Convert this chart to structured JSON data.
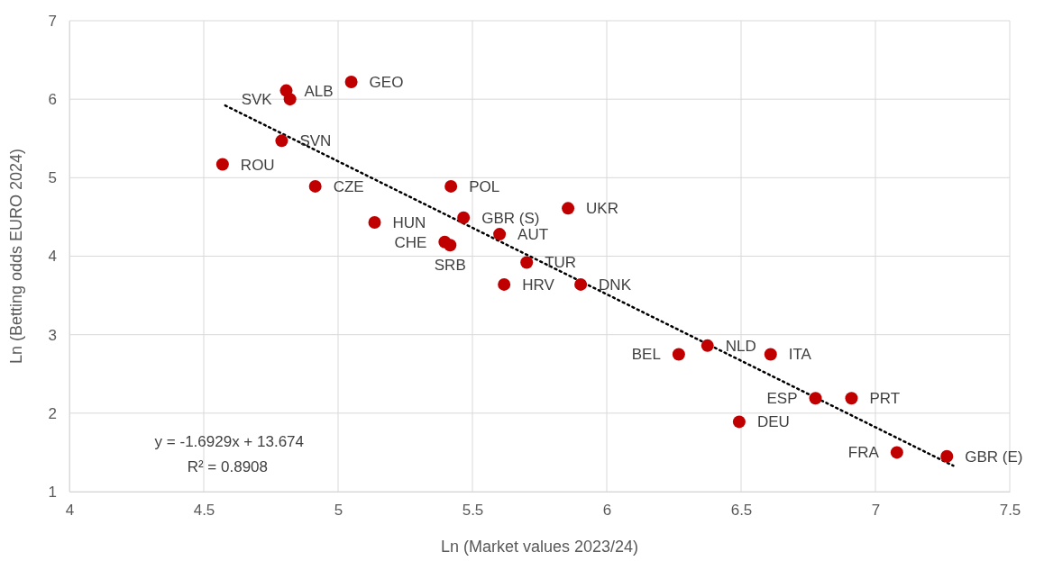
{
  "chart_data": {
    "type": "scatter",
    "xlabel": "Ln (Market values 2023/24)",
    "ylabel": "Ln (Betting odds EURO 2024)",
    "xlim": [
      4,
      7.5
    ],
    "xticks": [
      4,
      4.5,
      5,
      5.5,
      6,
      6.5,
      7,
      7.5
    ],
    "ylim": [
      1,
      7
    ],
    "yticks": [
      1,
      2,
      3,
      4,
      5,
      6,
      7
    ],
    "grid": true,
    "series": [
      {
        "color": "#c00000",
        "marker": "circle",
        "x": [
          4.807,
          5.049,
          4.821,
          4.79,
          4.57,
          4.915,
          5.42,
          5.856,
          5.467,
          5.136,
          5.601,
          5.397,
          5.417,
          5.702,
          5.618,
          5.903,
          6.375,
          6.268,
          6.61,
          6.777,
          6.911,
          6.493,
          7.08,
          7.266
        ],
        "values": [
          6.11,
          6.22,
          6.0,
          5.47,
          5.17,
          4.89,
          4.89,
          4.61,
          4.49,
          4.43,
          4.28,
          4.18,
          4.14,
          3.92,
          3.64,
          3.64,
          2.86,
          2.75,
          2.75,
          2.19,
          2.19,
          1.89,
          1.5,
          1.45
        ]
      },
      {
        "type": "line",
        "color": "#000000",
        "line_style": "dotted",
        "marker": "none",
        "x": [
          4.58,
          7.29
        ],
        "values": [
          5.92,
          1.33
        ]
      }
    ],
    "annotations": [
      {
        "text": "ALB",
        "x": 4.807,
        "y": 6.11
      },
      {
        "text": "GEO",
        "x": 5.049,
        "y": 6.22
      },
      {
        "text": "SVK",
        "x": 4.821,
        "y": 6.0
      },
      {
        "text": "SVN",
        "x": 4.79,
        "y": 5.47
      },
      {
        "text": "ROU",
        "x": 4.57,
        "y": 5.17
      },
      {
        "text": "CZE",
        "x": 4.915,
        "y": 4.89
      },
      {
        "text": "POL",
        "x": 5.42,
        "y": 4.89
      },
      {
        "text": "UKR",
        "x": 5.856,
        "y": 4.61
      },
      {
        "text": "GBR (S)",
        "x": 5.467,
        "y": 4.49
      },
      {
        "text": "HUN",
        "x": 5.136,
        "y": 4.43
      },
      {
        "text": "AUT",
        "x": 5.601,
        "y": 4.28
      },
      {
        "text": "CHE",
        "x": 5.397,
        "y": 4.18
      },
      {
        "text": "SRB",
        "x": 5.417,
        "y": 4.14
      },
      {
        "text": "TUR",
        "x": 5.702,
        "y": 3.92
      },
      {
        "text": "HRV",
        "x": 5.618,
        "y": 3.64
      },
      {
        "text": "DNK",
        "x": 5.903,
        "y": 3.64
      },
      {
        "text": "NLD",
        "x": 6.375,
        "y": 2.86
      },
      {
        "text": "BEL",
        "x": 6.268,
        "y": 2.75
      },
      {
        "text": "ITA",
        "x": 6.61,
        "y": 2.75
      },
      {
        "text": "ESP",
        "x": 6.777,
        "y": 2.19
      },
      {
        "text": "PRT",
        "x": 6.911,
        "y": 2.19
      },
      {
        "text": "DEU",
        "x": 6.493,
        "y": 1.89
      },
      {
        "text": "FRA",
        "x": 7.08,
        "y": 1.5
      },
      {
        "text": "GBR (E)",
        "x": 7.266,
        "y": 1.45
      },
      "y = -1.6929x + 13.674",
      "R² = 0.8908"
    ]
  }
}
